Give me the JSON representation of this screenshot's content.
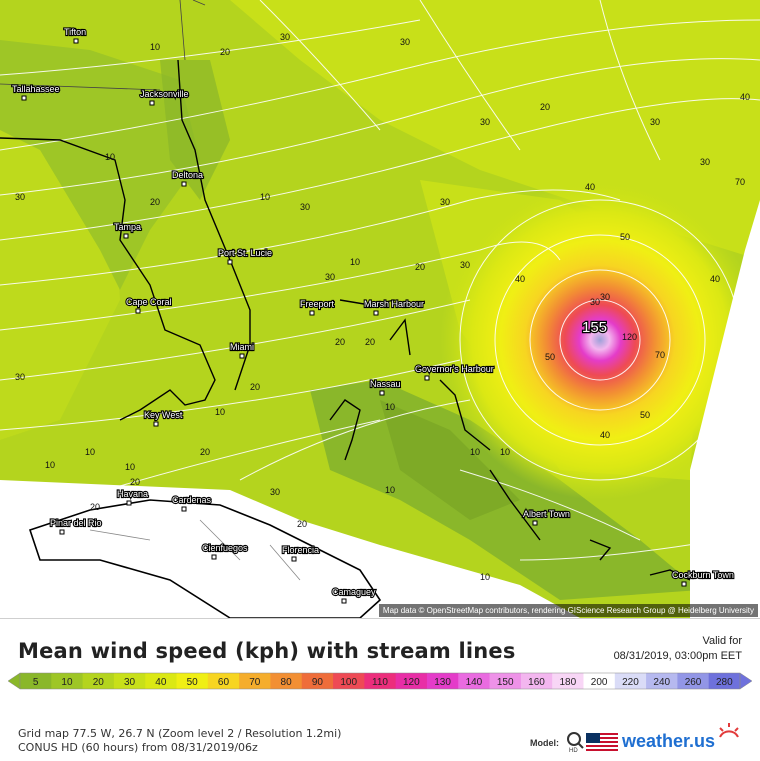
{
  "map": {
    "attribution": "Map data © OpenStreetMap contributors, rendering GIScience Research Group @ Heidelberg University",
    "peak_value": "155",
    "cities": [
      {
        "name": "Tifton"
      },
      {
        "name": "Tallahassee"
      },
      {
        "name": "Jacksonville"
      },
      {
        "name": "Deltona"
      },
      {
        "name": "Tampa"
      },
      {
        "name": "Port St. Lucie"
      },
      {
        "name": "Cape Coral"
      },
      {
        "name": "Freeport"
      },
      {
        "name": "Marsh Harbour"
      },
      {
        "name": "Miami"
      },
      {
        "name": "Nassau"
      },
      {
        "name": "Governor's Harbour"
      },
      {
        "name": "Key West"
      },
      {
        "name": "Havana"
      },
      {
        "name": "Cardenas"
      },
      {
        "name": "Pinar del Rio"
      },
      {
        "name": "Cienfuegos"
      },
      {
        "name": "Florencia"
      },
      {
        "name": "Camaguey"
      },
      {
        "name": "Albert Town"
      },
      {
        "name": "Cockburn Town"
      }
    ],
    "contour_labels": [
      "10",
      "20",
      "30",
      "10",
      "20",
      "30",
      "30",
      "20",
      "10",
      "30",
      "10",
      "30",
      "30",
      "30",
      "40",
      "10",
      "20",
      "30",
      "20",
      "30",
      "40",
      "30",
      "20",
      "10",
      "20",
      "30",
      "10",
      "10",
      "10",
      "20",
      "10",
      "10",
      "20",
      "10",
      "40",
      "50",
      "30",
      "120",
      "70",
      "50",
      "40",
      "50",
      "70",
      "40",
      "30",
      "30",
      "20",
      "20",
      "10"
    ]
  },
  "legend": {
    "title": "Mean wind speed (kph) with stream lines",
    "valid_label": "Valid for",
    "valid_datetime": "08/31/2019, 03:00pm EET",
    "values": [
      "5",
      "10",
      "20",
      "30",
      "40",
      "50",
      "60",
      "70",
      "80",
      "90",
      "100",
      "110",
      "120",
      "130",
      "140",
      "150",
      "160",
      "180",
      "200",
      "220",
      "240",
      "260",
      "280"
    ],
    "colors": [
      "#8ab72a",
      "#9ec626",
      "#b4d41e",
      "#c8e019",
      "#dbe814",
      "#f0ef14",
      "#f7d521",
      "#f5ad2c",
      "#f28f33",
      "#ef6d3a",
      "#ee4a55",
      "#ec2e7c",
      "#e82ea6",
      "#e43cc9",
      "#e96be0",
      "#ee92e8",
      "#f3b6ef",
      "#f8d6f6",
      "#ffffff",
      "#dadcf7",
      "#b6b9ef",
      "#9296e6",
      "#6e71dc"
    ]
  },
  "info": {
    "grid": "Grid map 77.5 W, 26.7 N (Zoom level 2 / Resolution 1.2mi)",
    "run": "CONUS HD (60 hours) from 08/31/2019/06z",
    "model_label": "Model:",
    "brand": "weather.us"
  }
}
